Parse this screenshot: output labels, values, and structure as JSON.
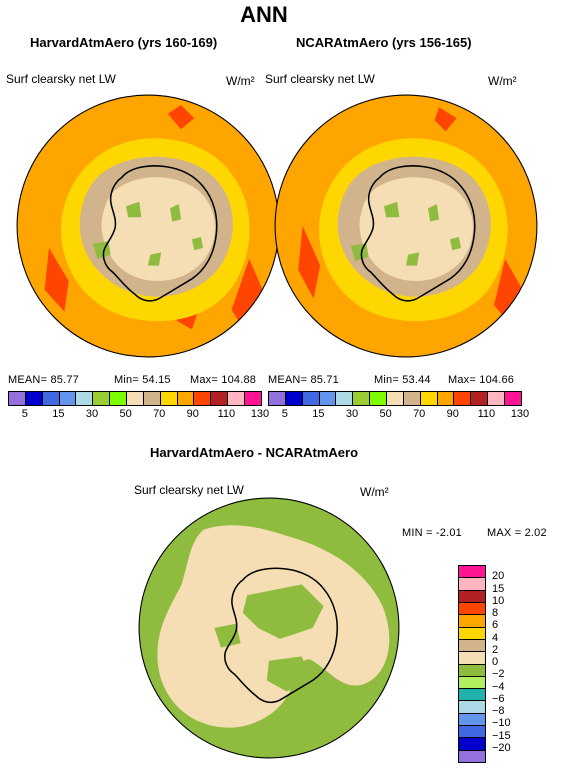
{
  "title": "ANN",
  "panel_left": {
    "title": "HarvardAtmAero (yrs 160-169)",
    "variable": "Surf clearsky net LW",
    "units": "W/m²",
    "mean": "MEAN=   85.77",
    "min": "Min=   54.15",
    "max": "Max= 104.88"
  },
  "panel_right": {
    "title": "NCARAtmAero (yrs 156-165)",
    "variable": "Surf clearsky net LW",
    "units": "W/m²",
    "mean": "MEAN=   85.71",
    "min": "Min=   53.44",
    "max": "Max= 104.66"
  },
  "colorbar_top": {
    "tick_labels": [
      "5",
      "15",
      "30",
      "50",
      "70",
      "90",
      "110",
      "130"
    ],
    "colors": [
      "#9370db",
      "#0000cd",
      "#4169e1",
      "#6495ed",
      "#add8e6",
      "#9acd32",
      "#7cfc00",
      "#f5deb3",
      "#d2b48c",
      "#ffd700",
      "#ffa500",
      "#ff4500",
      "#b22222",
      "#ffb6c1",
      "#ff1493"
    ]
  },
  "panel_diff": {
    "title": "HarvardAtmAero - NCARAtmAero",
    "variable": "Surf clearsky net LW",
    "units": "W/m²",
    "min": "MIN =   -2.01",
    "max": "MAX =    2.02"
  },
  "colorbar_diff": {
    "tick_labels": [
      "20",
      "15",
      "10",
      "8",
      "6",
      "4",
      "2",
      "0",
      "−2",
      "−4",
      "−6",
      "−8",
      "−10",
      "−15",
      "−20"
    ],
    "colors": [
      "#ff1493",
      "#ffb6c1",
      "#b22222",
      "#ff4500",
      "#ffa500",
      "#ffd700",
      "#d2b48c",
      "#f5deb3",
      "#8fbc3f",
      "#b0f060",
      "#20b2aa",
      "#add8e6",
      "#6495ed",
      "#4169e1",
      "#0000cd",
      "#9370db"
    ]
  },
  "map_colors": {
    "c50_70": "#8fbc3f",
    "c70_90": "#d2b48c",
    "c90": "#f5deb3",
    "yellow": "#ffd700",
    "orange": "#ffa500",
    "red": "#ff4500",
    "diff_green": "#8fbc3f",
    "diff_beige": "#f5deb3",
    "coast": "#000000"
  }
}
